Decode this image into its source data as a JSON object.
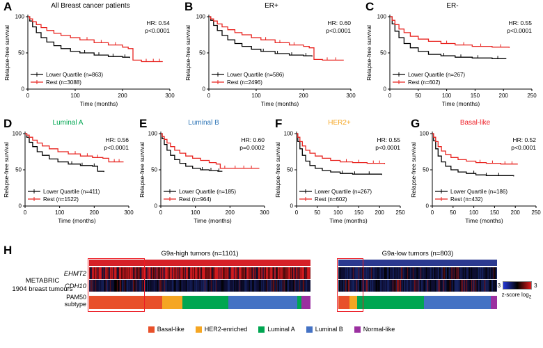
{
  "chart_data": {
    "type": "km_survival_figure",
    "km_panels": [
      {
        "letter": "A",
        "row": 1,
        "title": "All Breast cancer patients",
        "title_color": "#000000",
        "hr": "HR: 0.54",
        "p": "p<0.0001",
        "ylabel": "Relapse-free survival",
        "xlabel": "Time (months)",
        "xmax": 300,
        "xticks": [
          0,
          100,
          200,
          300
        ],
        "yticks": [
          0,
          50,
          100
        ],
        "series": [
          {
            "name": "Lower Quartile",
            "label": "Lower Quartile (n=863)",
            "color": "#000000",
            "x": [
              0,
              4,
              10,
              18,
              28,
              40,
              55,
              70,
              90,
              110,
              140,
              170,
              200,
              215
            ],
            "y": [
              100,
              94,
              86,
              78,
              71,
              65,
              60,
              56,
              52,
              50,
              47,
              45,
              44,
              43
            ],
            "censors": [
              120,
              150,
              180,
              205
            ]
          },
          {
            "name": "Rest",
            "label": "Rest (n=3088)",
            "color": "#e8231f",
            "x": [
              0,
              4,
              10,
              18,
              28,
              40,
              55,
              70,
              90,
              110,
              140,
              170,
              200,
              212,
              222,
              240,
              285
            ],
            "y": [
              100,
              97,
              93,
              89,
              85,
              81,
              77,
              74,
              71,
              68,
              64,
              61,
              58,
              56,
              40,
              38,
              38
            ],
            "censors": [
              125,
              155,
              185,
              250,
              265,
              278
            ]
          }
        ]
      },
      {
        "letter": "B",
        "row": 1,
        "title": "ER+",
        "title_color": "#000000",
        "hr": "HR: 0.60",
        "p": "p<0.0001",
        "ylabel": "Relapse-free survival",
        "xlabel": "Time (months)",
        "xmax": 300,
        "xticks": [
          0,
          100,
          200,
          300
        ],
        "yticks": [
          0,
          50,
          100
        ],
        "series": [
          {
            "name": "Lower Quartile",
            "label": "Lower Quartile (n=586)",
            "color": "#000000",
            "x": [
              0,
              4,
              10,
              18,
              28,
              40,
              55,
              70,
              90,
              110,
              140,
              170,
              200,
              218
            ],
            "y": [
              100,
              95,
              88,
              81,
              74,
              68,
              63,
              59,
              55,
              52,
              49,
              47,
              46,
              45
            ],
            "censors": [
              115,
              145,
              175,
              205
            ]
          },
          {
            "name": "Rest",
            "label": "Rest (n=2496)",
            "color": "#e8231f",
            "x": [
              0,
              4,
              10,
              18,
              28,
              40,
              55,
              70,
              90,
              110,
              140,
              170,
              200,
              212,
              222,
              240,
              285
            ],
            "y": [
              100,
              97,
              94,
              90,
              86,
              82,
              78,
              75,
              71,
              68,
              64,
              61,
              59,
              57,
              41,
              40,
              40
            ],
            "censors": [
              120,
              150,
              180,
              250,
              268
            ]
          }
        ]
      },
      {
        "letter": "C",
        "row": 1,
        "title": "ER-",
        "title_color": "#000000",
        "hr": "HR: 0.55",
        "p": "p<0.0001",
        "ylabel": "Relapse-free survival",
        "xlabel": "Time (months)",
        "xmax": 250,
        "xticks": [
          0,
          50,
          100,
          150,
          200,
          250
        ],
        "yticks": [
          0,
          50,
          100
        ],
        "series": [
          {
            "name": "Lower Quartile",
            "label": "Lower Quartile (n=267)",
            "color": "#000000",
            "x": [
              0,
              4,
              9,
              16,
              25,
              36,
              50,
              68,
              90,
              115,
              145,
              180,
              205
            ],
            "y": [
              100,
              90,
              80,
              71,
              63,
              57,
              52,
              48,
              46,
              44,
              43,
              42,
              42
            ],
            "censors": [
              95,
              125,
              155,
              190
            ]
          },
          {
            "name": "Rest",
            "label": "Rest (n=602)",
            "color": "#e8231f",
            "x": [
              0,
              4,
              9,
              16,
              25,
              36,
              50,
              68,
              90,
              115,
              145,
              180,
              210
            ],
            "y": [
              100,
              95,
              89,
              83,
              78,
              73,
              69,
              66,
              63,
              61,
              59,
              58,
              57
            ],
            "censors": [
              100,
              130,
              160,
              195
            ]
          }
        ]
      },
      {
        "letter": "D",
        "row": 2,
        "title": "Luminal A",
        "title_color": "#00a651",
        "hr": "HR: 0.56",
        "p": "p<0.0001",
        "ylabel": "Relapse-free survival",
        "xlabel": "Time (months)",
        "xmax": 300,
        "xticks": [
          0,
          100,
          200,
          300
        ],
        "yticks": [
          0,
          50,
          100
        ],
        "series": [
          {
            "name": "Lower Quartile",
            "label": "Lower Quartile (n=411)",
            "color": "#000000",
            "x": [
              0,
              5,
              12,
              22,
              35,
              50,
              70,
              95,
              125,
              160,
              195,
              210,
              228
            ],
            "y": [
              100,
              95,
              88,
              82,
              75,
              70,
              65,
              61,
              58,
              56,
              55,
              48,
              47
            ],
            "censors": [
              135,
              165,
              200
            ]
          },
          {
            "name": "Rest",
            "label": "Rest (n=1522)",
            "color": "#e8231f",
            "x": [
              0,
              5,
              12,
              22,
              35,
              50,
              70,
              95,
              125,
              160,
              195,
              225,
              242,
              285
            ],
            "y": [
              100,
              98,
              95,
              91,
              87,
              83,
              79,
              75,
              72,
              69,
              67,
              66,
              61,
              61
            ],
            "censors": [
              145,
              180,
              210,
              258,
              272
            ]
          }
        ]
      },
      {
        "letter": "E",
        "row": 2,
        "title": "Luminal B",
        "title_color": "#2e75b6",
        "hr": "HR: 0.60",
        "p": "p=0.0002",
        "ylabel": "Relapse-free survival",
        "xlabel": "Time (months)",
        "xmax": 300,
        "xticks": [
          0,
          100,
          200,
          300
        ],
        "yticks": [
          0,
          50,
          100
        ],
        "series": [
          {
            "name": "Lower Quartile",
            "label": "Lower Quartile (n=185)",
            "color": "#000000",
            "x": [
              0,
              4,
              10,
              18,
              28,
              40,
              55,
              72,
              92,
              115,
              140,
              165,
              178
            ],
            "y": [
              100,
              93,
              85,
              77,
              70,
              64,
              59,
              55,
              52,
              50,
              49,
              48,
              48
            ],
            "censors": [
              120,
              145,
              168
            ]
          },
          {
            "name": "Rest",
            "label": "Rest (n=964)",
            "color": "#e8231f",
            "x": [
              0,
              4,
              10,
              18,
              28,
              40,
              55,
              72,
              92,
              115,
              140,
              160,
              172,
              200,
              285
            ],
            "y": [
              100,
              96,
              92,
              87,
              82,
              77,
              73,
              69,
              66,
              63,
              60,
              58,
              52,
              52,
              52
            ],
            "censors": [
              185,
              215,
              240,
              262
            ]
          }
        ]
      },
      {
        "letter": "F",
        "row": 2,
        "title": "HER2+",
        "title_color": "#f5a623",
        "hr": "HR: 0.55",
        "p": "p<0.0001",
        "ylabel": "Relapse-free survival",
        "xlabel": "Time (months)",
        "xmax": 250,
        "xticks": [
          0,
          50,
          100,
          150,
          200,
          250
        ],
        "yticks": [
          0,
          50,
          100
        ],
        "series": [
          {
            "name": "Lower Quartile",
            "label": "Lower Quartile (n=267)",
            "color": "#000000",
            "x": [
              0,
              3,
              8,
              14,
              22,
              32,
              45,
              62,
              82,
              105,
              135,
              170,
              205
            ],
            "y": [
              100,
              89,
              79,
              70,
              62,
              56,
              52,
              49,
              47,
              45,
              44,
              44,
              43
            ],
            "censors": [
              110,
              140,
              175
            ]
          },
          {
            "name": "Rest",
            "label": "Rest (n=602)",
            "color": "#e8231f",
            "x": [
              0,
              3,
              8,
              14,
              22,
              32,
              45,
              62,
              82,
              105,
              135,
              170,
              212
            ],
            "y": [
              100,
              95,
              89,
              83,
              77,
              73,
              69,
              66,
              63,
              61,
              60,
              59,
              58
            ],
            "censors": [
              120,
              150,
              185,
              200
            ]
          }
        ]
      },
      {
        "letter": "G",
        "row": 2,
        "title": "Basal-like",
        "title_color": "#ed1c24",
        "hr": "HR: 0.52",
        "p": "p<0.0001",
        "ylabel": "Relapse-free survival",
        "xlabel": "Time (months)",
        "xmax": 250,
        "xticks": [
          0,
          50,
          100,
          150,
          200,
          250
        ],
        "yticks": [
          0,
          50,
          100
        ],
        "series": [
          {
            "name": "Lower Quartile",
            "label": "Lower Quartile (n=186)",
            "color": "#000000",
            "x": [
              0,
              3,
              8,
              14,
              22,
              32,
              45,
              62,
              82,
              105,
              130,
              160,
              196
            ],
            "y": [
              100,
              90,
              79,
              69,
              61,
              55,
              50,
              47,
              45,
              43,
              42,
              42,
              41
            ],
            "censors": [
              100,
              130,
              160
            ]
          },
          {
            "name": "Rest",
            "label": "Rest (n=432)",
            "color": "#e8231f",
            "x": [
              0,
              3,
              8,
              14,
              22,
              32,
              45,
              62,
              82,
              105,
              130,
              165,
              206
            ],
            "y": [
              100,
              95,
              89,
              82,
              76,
              71,
              67,
              64,
              62,
              60,
              59,
              58,
              58
            ],
            "censors": [
              115,
              145,
              175,
              192
            ]
          }
        ]
      }
    ],
    "heatmap": {
      "letter": "H",
      "left_label": [
        "METABRIC",
        "1904 breast tumours"
      ],
      "row_labels": {
        "gene1": "EHMT2",
        "gene2": "CDH10",
        "pam50_line1": "PAM50",
        "pam50_line2": "subtype"
      },
      "blocks": [
        {
          "title": "G9a-high tumors (n=1101)",
          "bar_color": "#d62027",
          "highlight_frac": 0.25,
          "pam50_segments": [
            {
              "name": "Basal-like",
              "color": "#e8502a",
              "frac": 0.33
            },
            {
              "name": "HER2-enriched",
              "color": "#f5a623",
              "frac": 0.09
            },
            {
              "name": "Luminal A",
              "color": "#00a651",
              "frac": 0.21
            },
            {
              "name": "Luminal B",
              "color": "#4472c4",
              "frac": 0.31
            },
            {
              "name": "Luminal A",
              "color": "#00a651",
              "frac": 0.02
            },
            {
              "name": "Normal-like",
              "color": "#9b30a0",
              "frac": 0.04
            }
          ],
          "ehmt2_palette": [
            [
              "#d11a1e",
              0.5
            ],
            [
              "#7d0f12",
              0.2
            ],
            [
              "#2e0808",
              0.15
            ],
            [
              "#12123a",
              0.15
            ]
          ],
          "cdh10_palette": [
            [
              "#0d0d32",
              0.45
            ],
            [
              "#16225e",
              0.3
            ],
            [
              "#000000",
              0.17
            ],
            [
              "#6b1010",
              0.08
            ]
          ]
        },
        {
          "title": "G9a-low tumors (n=803)",
          "bar_color": "#2b3990",
          "highlight_frac": 0.16,
          "pam50_segments": [
            {
              "name": "Basal-like",
              "color": "#e8502a",
              "frac": 0.07
            },
            {
              "name": "HER2-enriched",
              "color": "#f5a623",
              "frac": 0.05
            },
            {
              "name": "Luminal A",
              "color": "#00a651",
              "frac": 0.42
            },
            {
              "name": "Luminal B",
              "color": "#4472c4",
              "frac": 0.42
            },
            {
              "name": "Normal-like",
              "color": "#9b30a0",
              "frac": 0.04
            }
          ],
          "ehmt2_palette": [
            [
              "#0d0d32",
              0.45
            ],
            [
              "#16225e",
              0.3
            ],
            [
              "#000000",
              0.15
            ],
            [
              "#6b1010",
              0.1
            ]
          ],
          "cdh10_palette": [
            [
              "#0d0d32",
              0.4
            ],
            [
              "#16225e",
              0.28
            ],
            [
              "#000000",
              0.17
            ],
            [
              "#8c1414",
              0.15
            ]
          ]
        }
      ],
      "colorbar": {
        "min": "-3",
        "max": "3",
        "caption": "z-score log",
        "caption_sub": "2",
        "gradient": [
          "#2438d8",
          "#000000",
          "#e01b1b"
        ]
      },
      "legend": [
        {
          "label": "Basal-like",
          "color": "#e8502a"
        },
        {
          "label": "HER2-enriched",
          "color": "#f5a623"
        },
        {
          "label": "Luminal A",
          "color": "#00a651"
        },
        {
          "label": "Luminal B",
          "color": "#4472c4"
        },
        {
          "label": "Normal-like",
          "color": "#9b30a0"
        }
      ]
    }
  }
}
